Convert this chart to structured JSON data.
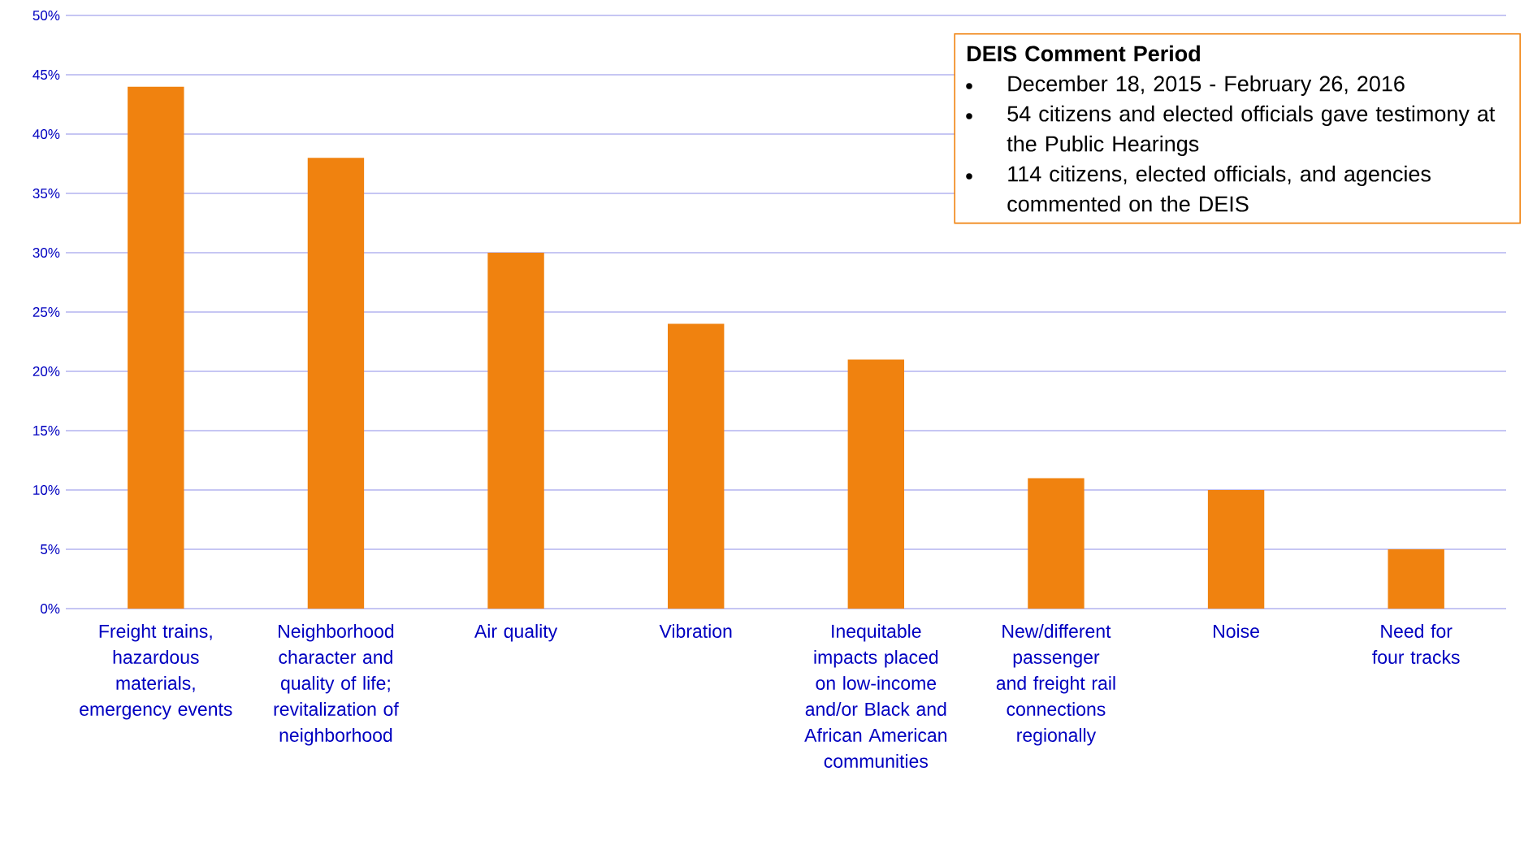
{
  "chart_data": {
    "type": "bar",
    "categories": [
      "Freight trains, hazardous materials, emergency events",
      "Neighborhood character and quality of life; revitalization of neighborhood",
      "Air quality",
      "Vibration",
      "Inequitable impacts placed on low-income and/or Black and African American communities",
      "New/different passenger and freight rail connections regionally",
      "Noise",
      "Need for four tracks"
    ],
    "values": [
      44,
      38,
      30,
      24,
      21,
      11,
      10,
      5
    ],
    "color": "#f0820f",
    "ylim": [
      0,
      50
    ],
    "yticks": [
      {
        "value": 0,
        "label": "0%"
      },
      {
        "value": 5,
        "label": "5%"
      },
      {
        "value": 10,
        "label": "10%"
      },
      {
        "value": 15,
        "label": "15%"
      },
      {
        "value": 20,
        "label": "20%"
      },
      {
        "value": 25,
        "label": "25%"
      },
      {
        "value": 30,
        "label": "30%"
      },
      {
        "value": 35,
        "label": "35%"
      },
      {
        "value": 40,
        "label": "40%"
      },
      {
        "value": 45,
        "label": "45%"
      },
      {
        "value": 50,
        "label": "50%"
      }
    ],
    "grid": "y",
    "annotations": [
      "DEIS Comment Period",
      "December 18, 2015 - February 26, 2016",
      "54 citizens and elected officials gave testimony at the Public Hearings",
      "114 citizens, elected officials, and agencies commented on the DEIS"
    ]
  }
}
